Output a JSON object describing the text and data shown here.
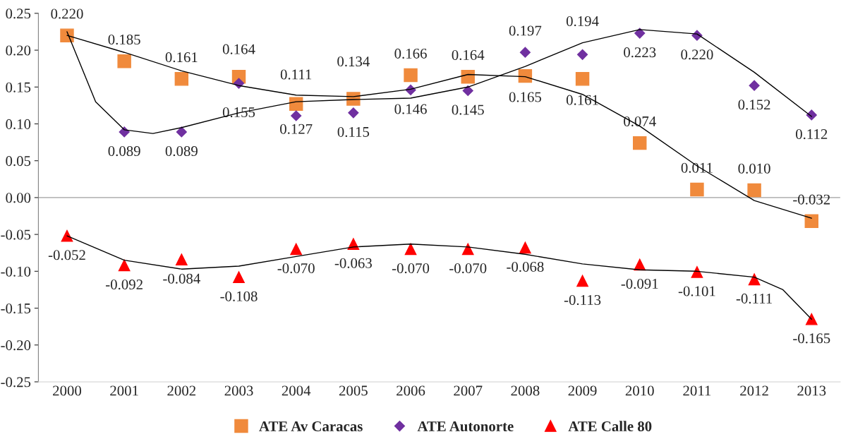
{
  "chart_data": {
    "type": "scatter",
    "xlim": [
      1999.5,
      2013.5
    ],
    "xticks": [
      2000,
      2001,
      2002,
      2003,
      2004,
      2005,
      2006,
      2007,
      2008,
      2009,
      2010,
      2011,
      2012,
      2013
    ],
    "ylim": [
      -0.25,
      0.25
    ],
    "yticks": [
      {
        "value": -0.25,
        "label": "-0.25"
      },
      {
        "value": -0.2,
        "label": "-0.20"
      },
      {
        "value": -0.15,
        "label": "-0.15"
      },
      {
        "value": -0.1,
        "label": "-0.10"
      },
      {
        "value": -0.05,
        "label": "-0.05"
      },
      {
        "value": 0,
        "label": "0.00"
      },
      {
        "value": 0.05,
        "label": "0.05"
      },
      {
        "value": 0.1,
        "label": "0.10"
      },
      {
        "value": 0.15,
        "label": "0.15"
      },
      {
        "value": 0.2,
        "label": "0.20"
      },
      {
        "value": 0.25,
        "label": "0.25"
      }
    ],
    "grid": false,
    "legend": "bottom",
    "ref_lines": [
      {
        "axis": "y",
        "value": 0,
        "color": "#a0a0a0"
      }
    ],
    "series": [
      {
        "name": "ATE Av Caracas",
        "marker": "square",
        "color": "#f08a3c",
        "x": [
          2000,
          2001,
          2002,
          2003,
          2004,
          2005,
          2006,
          2007,
          2008,
          2009,
          2010,
          2011,
          2012,
          2013
        ],
        "values": [
          0.22,
          0.185,
          0.161,
          0.164,
          0.127,
          0.134,
          0.166,
          0.164,
          0.165,
          0.161,
          0.074,
          0.011,
          0.01,
          -0.032
        ],
        "value_labels": [
          "0.220",
          "0.185",
          "0.161",
          "0.164",
          "0.127",
          "0.134",
          "0.166",
          "0.164",
          "0.165",
          "0.161",
          "0.074",
          "0.011",
          "0.010",
          "-0.032"
        ]
      },
      {
        "name": "ATE Autonorte",
        "marker": "diamond",
        "color": "#7030a0",
        "x": [
          2001,
          2002,
          2003,
          2004,
          2005,
          2006,
          2007,
          2008,
          2009,
          2010,
          2011,
          2012,
          2013
        ],
        "values": [
          0.089,
          0.089,
          0.155,
          0.111,
          0.115,
          0.146,
          0.145,
          0.197,
          0.194,
          0.223,
          0.22,
          0.152,
          0.112
        ],
        "value_labels": [
          "0.089",
          "0.089",
          "0.155",
          "0.111",
          "0.115",
          "0.146",
          "0.145",
          "0.197",
          "0.194",
          "0.223",
          "0.220",
          "0.152",
          "0.112"
        ]
      },
      {
        "name": "ATE Calle 80",
        "marker": "triangle",
        "color": "#ff0000",
        "x": [
          2000,
          2001,
          2002,
          2003,
          2004,
          2005,
          2006,
          2007,
          2008,
          2009,
          2010,
          2011,
          2012,
          2013
        ],
        "values": [
          -0.052,
          -0.092,
          -0.084,
          -0.108,
          -0.07,
          -0.063,
          -0.07,
          -0.07,
          -0.068,
          -0.113,
          -0.091,
          -0.101,
          -0.111,
          -0.165
        ],
        "value_labels": [
          "-0.052",
          "-0.092",
          "-0.084",
          "-0.108",
          "-0.070",
          "-0.063",
          "-0.070",
          "-0.070",
          "-0.068",
          "-0.113",
          "-0.091",
          "-0.101",
          "-0.111",
          "-0.165"
        ]
      },
      {
        "type": "line",
        "color": "#000000",
        "x": [
          2000,
          2001,
          2002,
          2003,
          2004,
          2005,
          2006,
          2007,
          2008,
          2009,
          2010,
          2011,
          2012,
          2013
        ],
        "values": [
          0.22,
          0.197,
          0.172,
          0.152,
          0.139,
          0.137,
          0.147,
          0.167,
          0.164,
          0.14,
          0.097,
          0.043,
          -0.004,
          -0.028
        ]
      },
      {
        "type": "line",
        "color": "#000000",
        "x": [
          2000,
          2000.5,
          2001,
          2001.5,
          2002,
          2003,
          2004,
          2005,
          2006,
          2007,
          2008,
          2009,
          2010,
          2011,
          2012,
          2013
        ],
        "values": [
          0.225,
          0.13,
          0.092,
          0.087,
          0.095,
          0.115,
          0.13,
          0.133,
          0.135,
          0.15,
          0.178,
          0.21,
          0.228,
          0.222,
          0.17,
          0.11
        ]
      },
      {
        "type": "line",
        "color": "#000000",
        "x": [
          2000,
          2001,
          2002,
          2003,
          2004,
          2005,
          2006,
          2007,
          2008,
          2009,
          2010,
          2011,
          2012,
          2012.5,
          2013
        ],
        "values": [
          -0.052,
          -0.085,
          -0.097,
          -0.093,
          -0.08,
          -0.067,
          -0.063,
          -0.067,
          -0.077,
          -0.09,
          -0.098,
          -0.1,
          -0.108,
          -0.125,
          -0.165
        ]
      }
    ]
  }
}
